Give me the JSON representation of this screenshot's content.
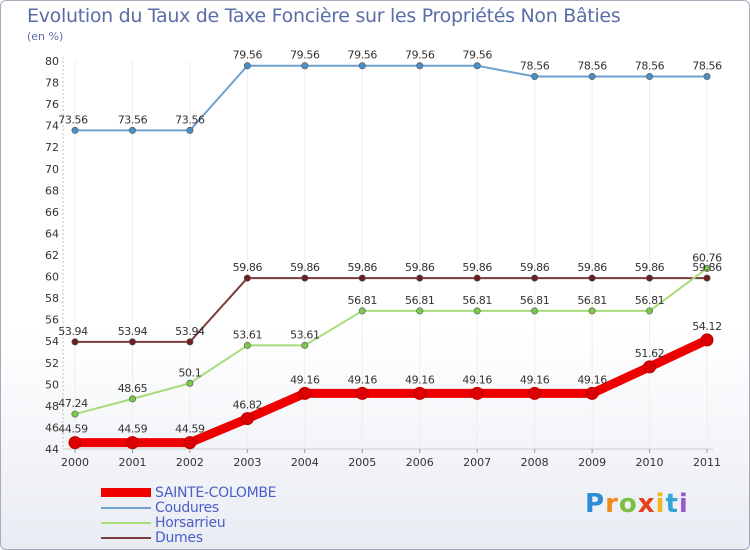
{
  "title": "Evolution du Taux de Taxe Foncière sur les Propriétés Non Bâties",
  "unit": "(en %)",
  "logo": "Proxiti",
  "chart_data": {
    "type": "line",
    "title": "Evolution du Taux de Taxe Foncière sur les Propriétés Non Bâties",
    "ylabel": "(en %)",
    "xlabel": "",
    "ylim": [
      44,
      80
    ],
    "yticks": [
      44,
      46,
      48,
      50,
      52,
      54,
      56,
      58,
      60,
      62,
      64,
      66,
      68,
      70,
      72,
      74,
      76,
      78,
      80
    ],
    "x": [
      "2000",
      "2001",
      "2002",
      "2003",
      "2004",
      "2005",
      "2006",
      "2007",
      "2008",
      "2009",
      "2010",
      "2011"
    ],
    "series": [
      {
        "name": "Coudures",
        "color": "#6fa1cf",
        "marker": "#4a90c8",
        "values": [
          73.56,
          73.56,
          73.56,
          79.56,
          79.56,
          79.56,
          79.56,
          79.56,
          78.56,
          78.56,
          78.56,
          78.56
        ]
      },
      {
        "name": "Dumes",
        "color": "#7a3b3b",
        "marker": "#6a2020",
        "values": [
          53.94,
          53.94,
          53.94,
          59.86,
          59.86,
          59.86,
          59.86,
          59.86,
          59.86,
          59.86,
          59.86,
          59.86
        ]
      },
      {
        "name": "Horsarrieu",
        "color": "#a6dc7a",
        "marker": "#7cc84c",
        "values": [
          47.24,
          48.65,
          50.1,
          53.61,
          53.61,
          56.81,
          56.81,
          56.81,
          56.81,
          56.81,
          56.81,
          60.76
        ]
      },
      {
        "name": "SAINTE-COLOMBE",
        "color": "#ee0000",
        "marker": "#dd0000",
        "values": [
          44.59,
          44.59,
          44.59,
          46.82,
          49.16,
          49.16,
          49.16,
          49.16,
          49.16,
          49.16,
          51.62,
          54.12
        ]
      }
    ],
    "labels": [
      [
        "73.56",
        "73.56",
        "73.56",
        "79.56",
        "79.56",
        "79.56",
        "79.56",
        "79.56",
        "78.56",
        "78.56",
        "78.56",
        "78.56"
      ],
      [
        "53.94",
        "53.94",
        "53.94",
        "59.86",
        "59.86",
        "59.86",
        "59.86",
        "59.86",
        "59.86",
        "59.86",
        "59.86",
        "59.86"
      ],
      [
        "47.24",
        "48.65",
        "50.1",
        "53.61",
        "53.61",
        "56.81",
        "56.81",
        "56.81",
        "56.81",
        "56.81",
        "56.81",
        "60.76"
      ],
      [
        "44.59",
        "44.59",
        "44.59",
        "46.82",
        "49.16",
        "49.16",
        "49.16",
        "49.16",
        "49.16",
        "49.16",
        "51.62",
        "54.12"
      ]
    ],
    "legend": [
      "SAINTE-COLOMBE",
      "Coudures",
      "Horsarrieu",
      "Dumes"
    ],
    "legend_placement": "bottom-left"
  }
}
